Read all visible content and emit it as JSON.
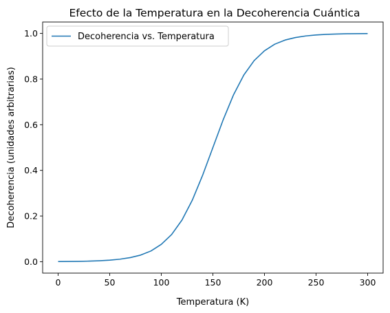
{
  "chart_data": {
    "type": "line",
    "title": "Efecto de la Temperatura en la Decoherencia Cuántica",
    "xlabel": "Temperatura (K)",
    "ylabel": "Decoherencia (unidades arbitrarias)",
    "xlim": [
      -15,
      315
    ],
    "ylim": [
      -0.05,
      1.05
    ],
    "xticks": [
      0,
      50,
      100,
      150,
      200,
      250,
      300
    ],
    "yticks": [
      0.0,
      0.2,
      0.4,
      0.6,
      0.8,
      1.0
    ],
    "xtick_labels": [
      "0",
      "50",
      "100",
      "150",
      "200",
      "250",
      "300"
    ],
    "ytick_labels": [
      "0.0",
      "0.2",
      "0.4",
      "0.6",
      "0.8",
      "1.0"
    ],
    "grid": false,
    "legend_position": "top-left",
    "series": [
      {
        "name": "Decoherencia vs. Temperatura",
        "color": "#1f77b4",
        "x": [
          0,
          10,
          20,
          30,
          40,
          50,
          60,
          70,
          80,
          90,
          100,
          110,
          120,
          130,
          140,
          150,
          160,
          170,
          180,
          190,
          200,
          210,
          220,
          230,
          240,
          250,
          260,
          270,
          280,
          290,
          300
        ],
        "y": [
          0.0006,
          0.0009,
          0.0015,
          0.0025,
          0.0041,
          0.0067,
          0.011,
          0.018,
          0.029,
          0.047,
          0.076,
          0.119,
          0.182,
          0.269,
          0.378,
          0.5,
          0.622,
          0.731,
          0.818,
          0.881,
          0.924,
          0.953,
          0.971,
          0.982,
          0.989,
          0.9933,
          0.9959,
          0.9975,
          0.9985,
          0.9991,
          0.9994
        ]
      }
    ]
  }
}
